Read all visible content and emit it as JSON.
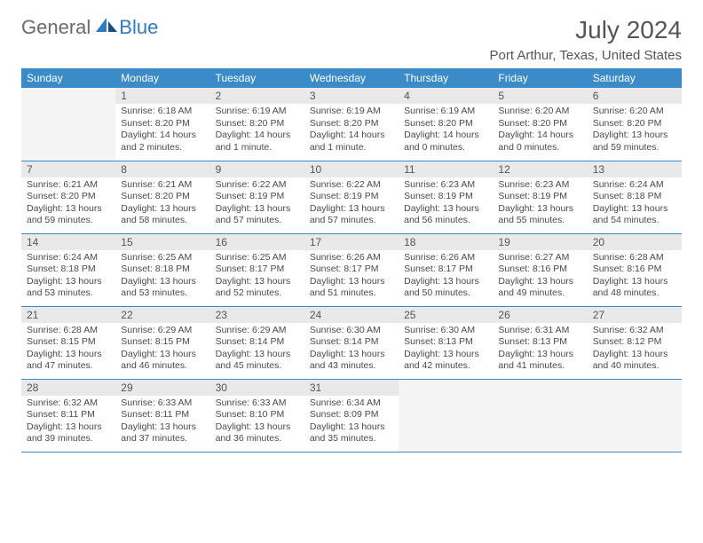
{
  "brand": {
    "word1": "General",
    "word2": "Blue"
  },
  "title": "July 2024",
  "location": "Port Arthur, Texas, United States",
  "colors": {
    "header_bg": "#3b8bc9",
    "header_text": "#ffffff",
    "daynum_bg": "#e9e9e9",
    "border": "#3b8bc9",
    "brand_grey": "#6b6b6b",
    "brand_blue": "#2f7bbf"
  },
  "week_header": [
    "Sunday",
    "Monday",
    "Tuesday",
    "Wednesday",
    "Thursday",
    "Friday",
    "Saturday"
  ],
  "weeks": [
    [
      null,
      {
        "n": "1",
        "sr": "Sunrise: 6:18 AM",
        "ss": "Sunset: 8:20 PM",
        "dl1": "Daylight: 14 hours",
        "dl2": "and 2 minutes."
      },
      {
        "n": "2",
        "sr": "Sunrise: 6:19 AM",
        "ss": "Sunset: 8:20 PM",
        "dl1": "Daylight: 14 hours",
        "dl2": "and 1 minute."
      },
      {
        "n": "3",
        "sr": "Sunrise: 6:19 AM",
        "ss": "Sunset: 8:20 PM",
        "dl1": "Daylight: 14 hours",
        "dl2": "and 1 minute."
      },
      {
        "n": "4",
        "sr": "Sunrise: 6:19 AM",
        "ss": "Sunset: 8:20 PM",
        "dl1": "Daylight: 14 hours",
        "dl2": "and 0 minutes."
      },
      {
        "n": "5",
        "sr": "Sunrise: 6:20 AM",
        "ss": "Sunset: 8:20 PM",
        "dl1": "Daylight: 14 hours",
        "dl2": "and 0 minutes."
      },
      {
        "n": "6",
        "sr": "Sunrise: 6:20 AM",
        "ss": "Sunset: 8:20 PM",
        "dl1": "Daylight: 13 hours",
        "dl2": "and 59 minutes."
      }
    ],
    [
      {
        "n": "7",
        "sr": "Sunrise: 6:21 AM",
        "ss": "Sunset: 8:20 PM",
        "dl1": "Daylight: 13 hours",
        "dl2": "and 59 minutes."
      },
      {
        "n": "8",
        "sr": "Sunrise: 6:21 AM",
        "ss": "Sunset: 8:20 PM",
        "dl1": "Daylight: 13 hours",
        "dl2": "and 58 minutes."
      },
      {
        "n": "9",
        "sr": "Sunrise: 6:22 AM",
        "ss": "Sunset: 8:19 PM",
        "dl1": "Daylight: 13 hours",
        "dl2": "and 57 minutes."
      },
      {
        "n": "10",
        "sr": "Sunrise: 6:22 AM",
        "ss": "Sunset: 8:19 PM",
        "dl1": "Daylight: 13 hours",
        "dl2": "and 57 minutes."
      },
      {
        "n": "11",
        "sr": "Sunrise: 6:23 AM",
        "ss": "Sunset: 8:19 PM",
        "dl1": "Daylight: 13 hours",
        "dl2": "and 56 minutes."
      },
      {
        "n": "12",
        "sr": "Sunrise: 6:23 AM",
        "ss": "Sunset: 8:19 PM",
        "dl1": "Daylight: 13 hours",
        "dl2": "and 55 minutes."
      },
      {
        "n": "13",
        "sr": "Sunrise: 6:24 AM",
        "ss": "Sunset: 8:18 PM",
        "dl1": "Daylight: 13 hours",
        "dl2": "and 54 minutes."
      }
    ],
    [
      {
        "n": "14",
        "sr": "Sunrise: 6:24 AM",
        "ss": "Sunset: 8:18 PM",
        "dl1": "Daylight: 13 hours",
        "dl2": "and 53 minutes."
      },
      {
        "n": "15",
        "sr": "Sunrise: 6:25 AM",
        "ss": "Sunset: 8:18 PM",
        "dl1": "Daylight: 13 hours",
        "dl2": "and 53 minutes."
      },
      {
        "n": "16",
        "sr": "Sunrise: 6:25 AM",
        "ss": "Sunset: 8:17 PM",
        "dl1": "Daylight: 13 hours",
        "dl2": "and 52 minutes."
      },
      {
        "n": "17",
        "sr": "Sunrise: 6:26 AM",
        "ss": "Sunset: 8:17 PM",
        "dl1": "Daylight: 13 hours",
        "dl2": "and 51 minutes."
      },
      {
        "n": "18",
        "sr": "Sunrise: 6:26 AM",
        "ss": "Sunset: 8:17 PM",
        "dl1": "Daylight: 13 hours",
        "dl2": "and 50 minutes."
      },
      {
        "n": "19",
        "sr": "Sunrise: 6:27 AM",
        "ss": "Sunset: 8:16 PM",
        "dl1": "Daylight: 13 hours",
        "dl2": "and 49 minutes."
      },
      {
        "n": "20",
        "sr": "Sunrise: 6:28 AM",
        "ss": "Sunset: 8:16 PM",
        "dl1": "Daylight: 13 hours",
        "dl2": "and 48 minutes."
      }
    ],
    [
      {
        "n": "21",
        "sr": "Sunrise: 6:28 AM",
        "ss": "Sunset: 8:15 PM",
        "dl1": "Daylight: 13 hours",
        "dl2": "and 47 minutes."
      },
      {
        "n": "22",
        "sr": "Sunrise: 6:29 AM",
        "ss": "Sunset: 8:15 PM",
        "dl1": "Daylight: 13 hours",
        "dl2": "and 46 minutes."
      },
      {
        "n": "23",
        "sr": "Sunrise: 6:29 AM",
        "ss": "Sunset: 8:14 PM",
        "dl1": "Daylight: 13 hours",
        "dl2": "and 45 minutes."
      },
      {
        "n": "24",
        "sr": "Sunrise: 6:30 AM",
        "ss": "Sunset: 8:14 PM",
        "dl1": "Daylight: 13 hours",
        "dl2": "and 43 minutes."
      },
      {
        "n": "25",
        "sr": "Sunrise: 6:30 AM",
        "ss": "Sunset: 8:13 PM",
        "dl1": "Daylight: 13 hours",
        "dl2": "and 42 minutes."
      },
      {
        "n": "26",
        "sr": "Sunrise: 6:31 AM",
        "ss": "Sunset: 8:13 PM",
        "dl1": "Daylight: 13 hours",
        "dl2": "and 41 minutes."
      },
      {
        "n": "27",
        "sr": "Sunrise: 6:32 AM",
        "ss": "Sunset: 8:12 PM",
        "dl1": "Daylight: 13 hours",
        "dl2": "and 40 minutes."
      }
    ],
    [
      {
        "n": "28",
        "sr": "Sunrise: 6:32 AM",
        "ss": "Sunset: 8:11 PM",
        "dl1": "Daylight: 13 hours",
        "dl2": "and 39 minutes."
      },
      {
        "n": "29",
        "sr": "Sunrise: 6:33 AM",
        "ss": "Sunset: 8:11 PM",
        "dl1": "Daylight: 13 hours",
        "dl2": "and 37 minutes."
      },
      {
        "n": "30",
        "sr": "Sunrise: 6:33 AM",
        "ss": "Sunset: 8:10 PM",
        "dl1": "Daylight: 13 hours",
        "dl2": "and 36 minutes."
      },
      {
        "n": "31",
        "sr": "Sunrise: 6:34 AM",
        "ss": "Sunset: 8:09 PM",
        "dl1": "Daylight: 13 hours",
        "dl2": "and 35 minutes."
      },
      null,
      null,
      null
    ]
  ]
}
